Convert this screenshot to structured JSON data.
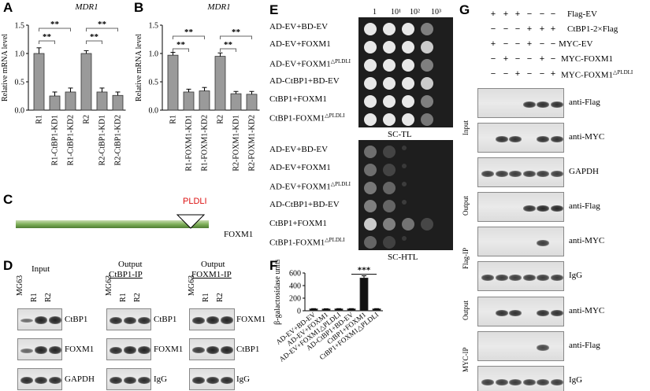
{
  "panels": {
    "A": "A",
    "B": "B",
    "C": "C",
    "D": "D",
    "E": "E",
    "F": "F",
    "G": "G"
  },
  "chart_data": [
    {
      "type": "bar",
      "panel": "A",
      "title": "MDR1",
      "ylabel": "Relative mRNA level",
      "categories": [
        "R1",
        "R1-CtBP1-KD1",
        "R1-CtBP1-KD2",
        "R2",
        "R2-CtBP1-KD1",
        "R2-CtBP1-KD2"
      ],
      "values": [
        1.0,
        0.25,
        0.32,
        1.0,
        0.32,
        0.26
      ],
      "errors": [
        0.1,
        0.07,
        0.07,
        0.05,
        0.07,
        0.06
      ],
      "ylim": [
        0,
        1.5
      ],
      "yticks": [
        "0.0",
        "0.5",
        "1.0",
        "1.5"
      ],
      "significance": [
        {
          "from": 0,
          "to": 2,
          "label": "**"
        },
        {
          "from": 0,
          "to": 1,
          "label": "**"
        },
        {
          "from": 3,
          "to": 5,
          "label": "**"
        },
        {
          "from": 3,
          "to": 4,
          "label": "**"
        }
      ]
    },
    {
      "type": "bar",
      "panel": "B",
      "title": "MDR1",
      "ylabel": "Relative mRNA level",
      "categories": [
        "R1",
        "R1-FOXM1-KD1",
        "R1-FOXM1-KD2",
        "R2",
        "R2-FOXM1-KD1",
        "R2-FOXM1-KD2"
      ],
      "values": [
        0.97,
        0.32,
        0.34,
        0.95,
        0.29,
        0.28
      ],
      "errors": [
        0.05,
        0.05,
        0.06,
        0.06,
        0.04,
        0.05
      ],
      "ylim": [
        0,
        1.5
      ],
      "yticks": [
        "0.0",
        "0.5",
        "1.0",
        "1.5"
      ],
      "significance": [
        {
          "from": 0,
          "to": 2,
          "label": "**"
        },
        {
          "from": 0,
          "to": 1,
          "label": "**"
        },
        {
          "from": 3,
          "to": 5,
          "label": "**"
        },
        {
          "from": 3,
          "to": 4,
          "label": "**"
        }
      ]
    },
    {
      "type": "bar",
      "panel": "F",
      "ylabel": "β-galactosidase units",
      "categories": [
        "AD-EV+BD-EV",
        "AD-EV+FOXM1",
        "AD-EV+FOXM1△PLDLI",
        "AD-CtBP1+BD-EV",
        "CtBP1+FOXM1",
        "CtBP1+FOXM1△PLDLI"
      ],
      "values": [
        30,
        28,
        30,
        30,
        520,
        30
      ],
      "errors": [
        4,
        4,
        4,
        4,
        35,
        4
      ],
      "ylim": [
        0,
        600
      ],
      "yticks": [
        "0",
        "200",
        "400",
        "600"
      ],
      "significance": [
        {
          "from": 4,
          "to": 4,
          "label": "***"
        }
      ]
    }
  ],
  "panelC": {
    "motif": "PLDLI",
    "protein": "FOXM1"
  },
  "panelD": {
    "groups": [
      {
        "title": "Input",
        "subtitle": "",
        "lanes": [
          "MG63",
          "R1",
          "R2"
        ],
        "rows": [
          "CtBP1",
          "FOXM1",
          "GAPDH"
        ]
      },
      {
        "title": "Output",
        "subtitle": "CtBP1-IP",
        "lanes": [
          "MG63",
          "R1",
          "R2"
        ],
        "rows": [
          "CtBP1",
          "FOXM1",
          "IgG"
        ]
      },
      {
        "title": "Output",
        "subtitle": "FOXM1-IP",
        "lanes": [
          "MG63",
          "R1",
          "R2"
        ],
        "rows": [
          "FOXM1",
          "CtBP1",
          "IgG"
        ]
      }
    ]
  },
  "panelE": {
    "dilutions": [
      "1",
      "10¹",
      "10²",
      "10³"
    ],
    "rows": [
      "AD-EV+BD-EV",
      "AD-EV+FOXM1",
      "AD-EV+FOXM1",
      "AD-CtBP1+BD-EV",
      "CtBP1+FOXM1",
      "CtBP1-FOXM1"
    ],
    "row_superscripts": [
      "",
      "",
      "△PLDLI",
      "",
      "",
      "△PLDLI"
    ],
    "plate1_label": "SC-TL",
    "plate2_label": "SC-HTL"
  },
  "panelG": {
    "conditions": [
      {
        "label": "Flag-EV",
        "signs": [
          "+",
          "+",
          "+",
          "−",
          "−",
          "−"
        ]
      },
      {
        "label": "CtBP1-2×Flag",
        "signs": [
          "−",
          "−",
          "−",
          "+",
          "+",
          "+"
        ]
      },
      {
        "label": "MYC-EV",
        "signs": [
          "+",
          "−",
          "−",
          "+",
          "−",
          "−"
        ]
      },
      {
        "label": "MYC-FOXM1",
        "signs": [
          "−",
          "+",
          "−",
          "−",
          "+",
          "−"
        ]
      },
      {
        "label": "MYC-FOXM1",
        "sup": "△PLDLI",
        "signs": [
          "−",
          "−",
          "+",
          "−",
          "−",
          "+"
        ]
      }
    ],
    "sections": [
      {
        "side": "Input",
        "rows": [
          "anti-Flag",
          "anti-MYC",
          "GAPDH"
        ]
      },
      {
        "side": "Output",
        "side2": "Flag-IP",
        "rows": [
          "anti-Flag",
          "anti-MYC",
          "IgG"
        ]
      },
      {
        "side": "Output",
        "side2": "MYC-IP",
        "rows": [
          "anti-MYC",
          "anti-Flag",
          "IgG"
        ]
      }
    ]
  }
}
